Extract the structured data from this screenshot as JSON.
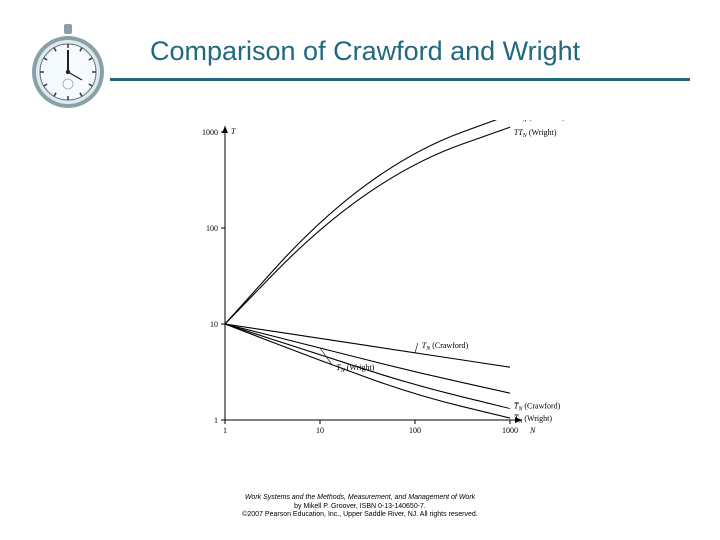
{
  "title": {
    "text": "Comparison of Crawford and Wright",
    "color": "#20697e",
    "fontsize": 27
  },
  "underline_color": "#20697e",
  "stopwatch": {
    "rim_outer": "#8aa0a8",
    "rim_inner": "#dfe9ee",
    "face": "#f5fbff",
    "tick": "#335",
    "hand": "#222",
    "button": "#8aa0a8"
  },
  "chart": {
    "type": "line",
    "scale": "log-log",
    "xlim": [
      1,
      1000
    ],
    "ylim": [
      1,
      1000
    ],
    "xticks": [
      1,
      10,
      100,
      1000
    ],
    "yticks": [
      1,
      10,
      100,
      1000
    ],
    "xlabel": "N",
    "ylabel": "T",
    "axis_color": "#000000",
    "line_color": "#000000",
    "line_width": 1.1,
    "background_color": "#ffffff",
    "series": [
      {
        "name": "TT_N_Crawford",
        "label": "$TT_N$ (Crawford)",
        "points_logxy": [
          [
            0,
            1.0
          ],
          [
            1,
            2.1
          ],
          [
            2,
            2.82
          ],
          [
            3,
            3.18
          ]
        ]
      },
      {
        "name": "TT_N_Wright",
        "label": "$TT_N$ (Wright)",
        "points_logxy": [
          [
            0,
            1.0
          ],
          [
            1,
            2.02
          ],
          [
            2,
            2.7
          ],
          [
            3,
            3.05
          ]
        ]
      },
      {
        "name": "T_N_Crawford",
        "label": "$T_N$ (Crawford)",
        "points_logxy": [
          [
            0,
            1.0
          ],
          [
            1,
            0.85
          ],
          [
            2,
            0.7
          ],
          [
            3,
            0.55
          ]
        ]
      },
      {
        "name": "T_N_Wright",
        "label": "$T_N$ (Wright)",
        "points_logxy": [
          [
            0,
            1.0
          ],
          [
            1,
            0.75
          ],
          [
            2,
            0.5
          ],
          [
            3,
            0.28
          ]
        ]
      },
      {
        "name": "Tbar_N_Crawford",
        "label": "$\\overline{T}_N$ (Crawford)",
        "points_logxy": [
          [
            0,
            1.0
          ],
          [
            1,
            0.68
          ],
          [
            2,
            0.36
          ],
          [
            3,
            0.12
          ]
        ]
      },
      {
        "name": "Tbar_N_Wright",
        "label": "$\\overline{T}_N$ (Wright)",
        "points_logxy": [
          [
            0,
            1.0
          ],
          [
            1,
            0.62
          ],
          [
            2,
            0.26
          ],
          [
            3,
            0.02
          ]
        ]
      }
    ],
    "inline_labels": [
      {
        "series": "TT_N_Crawford",
        "text": "TT_N (Crawford)",
        "at_logx": 3.02,
        "at_logy": 3.16,
        "anchor": "start"
      },
      {
        "series": "TT_N_Wright",
        "text": "TT_N (Wright)",
        "at_logx": 3.02,
        "at_logy": 3.0,
        "anchor": "start"
      },
      {
        "series": "T_N_Crawford",
        "text": "T_N (Crawford)",
        "at_logx": 2.05,
        "at_logy": 0.78,
        "anchor": "start",
        "leader": true
      },
      {
        "series": "T_N_Wright",
        "text": "T_N (Wright)",
        "at_logx": 1.15,
        "at_logy": 0.55,
        "anchor": "start",
        "leader": true
      },
      {
        "series": "Tbar_N_Crawford",
        "text": "T̅_N (Crawford)",
        "at_logx": 3.02,
        "at_logy": 0.15,
        "anchor": "start"
      },
      {
        "series": "Tbar_N_Wright",
        "text": "T̅_N (Wright)",
        "at_logx": 3.02,
        "at_logy": 0.02,
        "anchor": "start"
      }
    ]
  },
  "footer": {
    "line1": "Work Systems and the Methods, Measurement, and Management of Work",
    "line2": "by Mikell P. Groover, ISBN 0-13-140650-7.",
    "line3": "©2007 Pearson Education, Inc., Upper Saddle River, NJ.  All rights reserved."
  }
}
